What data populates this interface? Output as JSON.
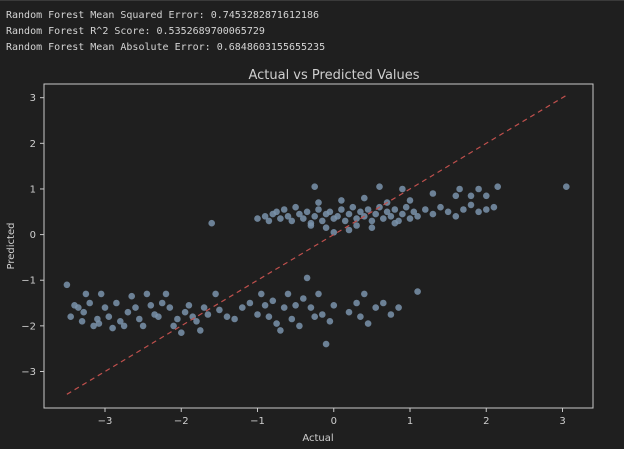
{
  "console": {
    "lines": [
      "Random Forest Mean Squared Error: 0.7453282871612186",
      "Random Forest R^2 Score: 0.5352689700065729",
      "Random Forest Mean Absolute Error: 0.6848603155655235"
    ]
  },
  "colors": {
    "background": "#1f1f1f",
    "axes": "#c8c8c8",
    "points": "#7a93ab",
    "reference_line": "#c0504d"
  },
  "chart_data": {
    "type": "scatter",
    "title": "Actual vs Predicted Values",
    "xlabel": "Actual",
    "ylabel": "Predicted",
    "xlim": [
      -3.8,
      3.4
    ],
    "ylim": [
      -3.8,
      3.3
    ],
    "xticks": [
      "−3",
      "−2",
      "−1",
      "0",
      "1",
      "2",
      "3"
    ],
    "xtick_values": [
      -3,
      -2,
      -1,
      0,
      1,
      2,
      3
    ],
    "yticks": [
      "−3",
      "−2",
      "−1",
      "0",
      "1",
      "2",
      "3"
    ],
    "ytick_values": [
      -3,
      -2,
      -1,
      0,
      1,
      2,
      3
    ],
    "grid": false,
    "reference_line": {
      "x": [
        -3.5,
        3.05
      ],
      "y": [
        -3.5,
        3.05
      ],
      "style": "dashed"
    },
    "points": [
      [
        -3.5,
        -1.1
      ],
      [
        -3.45,
        -1.8
      ],
      [
        -3.4,
        -1.55
      ],
      [
        -3.35,
        -1.6
      ],
      [
        -3.3,
        -1.9
      ],
      [
        -3.28,
        -1.7
      ],
      [
        -3.25,
        -1.3
      ],
      [
        -3.2,
        -1.5
      ],
      [
        -3.15,
        -2.0
      ],
      [
        -3.1,
        -1.85
      ],
      [
        -3.08,
        -1.95
      ],
      [
        -3.05,
        -1.3
      ],
      [
        -3.0,
        -1.6
      ],
      [
        -2.95,
        -1.8
      ],
      [
        -2.9,
        -2.05
      ],
      [
        -2.85,
        -1.5
      ],
      [
        -2.8,
        -1.9
      ],
      [
        -2.75,
        -2.0
      ],
      [
        -2.7,
        -1.7
      ],
      [
        -2.65,
        -1.35
      ],
      [
        -2.6,
        -1.6
      ],
      [
        -2.55,
        -1.85
      ],
      [
        -2.5,
        -2.0
      ],
      [
        -2.45,
        -1.3
      ],
      [
        -2.4,
        -1.55
      ],
      [
        -2.35,
        -1.75
      ],
      [
        -2.3,
        -1.8
      ],
      [
        -2.25,
        -1.5
      ],
      [
        -2.2,
        -1.3
      ],
      [
        -2.15,
        -1.6
      ],
      [
        -2.1,
        -2.0
      ],
      [
        -2.05,
        -1.85
      ],
      [
        -2.0,
        -2.15
      ],
      [
        -1.95,
        -1.7
      ],
      [
        -1.9,
        -1.55
      ],
      [
        -1.85,
        -1.8
      ],
      [
        -1.8,
        -1.9
      ],
      [
        -1.75,
        -2.1
      ],
      [
        -1.7,
        -1.6
      ],
      [
        -1.65,
        -1.75
      ],
      [
        -1.6,
        0.25
      ],
      [
        -1.55,
        -1.3
      ],
      [
        -1.5,
        -1.65
      ],
      [
        -1.4,
        -1.8
      ],
      [
        -1.3,
        -1.85
      ],
      [
        -1.2,
        -1.6
      ],
      [
        -1.1,
        -1.5
      ],
      [
        -1.0,
        -1.75
      ],
      [
        -0.95,
        -1.3
      ],
      [
        -0.9,
        -1.55
      ],
      [
        -0.85,
        -1.8
      ],
      [
        -0.8,
        -1.45
      ],
      [
        -0.75,
        -1.95
      ],
      [
        -0.7,
        -2.1
      ],
      [
        -0.65,
        -1.6
      ],
      [
        -0.6,
        -1.3
      ],
      [
        -0.55,
        -1.85
      ],
      [
        -0.5,
        -1.55
      ],
      [
        -0.45,
        -2.0
      ],
      [
        -0.4,
        -1.4
      ],
      [
        -0.35,
        -0.95
      ],
      [
        -0.3,
        -1.6
      ],
      [
        -0.25,
        -1.8
      ],
      [
        -0.2,
        -1.3
      ],
      [
        -0.15,
        -1.75
      ],
      [
        -0.1,
        -2.4
      ],
      [
        -0.05,
        -1.9
      ],
      [
        0.0,
        -1.55
      ],
      [
        0.2,
        -1.7
      ],
      [
        0.3,
        -1.5
      ],
      [
        0.35,
        -1.8
      ],
      [
        0.4,
        -1.3
      ],
      [
        0.45,
        -1.95
      ],
      [
        0.55,
        -1.6
      ],
      [
        0.65,
        -1.5
      ],
      [
        0.75,
        -1.75
      ],
      [
        0.85,
        -1.6
      ],
      [
        1.1,
        -1.25
      ],
      [
        -1.0,
        0.35
      ],
      [
        -0.9,
        0.4
      ],
      [
        -0.85,
        0.3
      ],
      [
        -0.8,
        0.45
      ],
      [
        -0.75,
        0.5
      ],
      [
        -0.7,
        0.35
      ],
      [
        -0.65,
        0.55
      ],
      [
        -0.6,
        0.4
      ],
      [
        -0.55,
        0.3
      ],
      [
        -0.5,
        0.6
      ],
      [
        -0.45,
        0.45
      ],
      [
        -0.4,
        0.35
      ],
      [
        -0.35,
        0.5
      ],
      [
        -0.3,
        0.2
      ],
      [
        -0.25,
        0.4
      ],
      [
        -0.2,
        0.55
      ],
      [
        -0.15,
        0.3
      ],
      [
        -0.1,
        0.45
      ],
      [
        -0.05,
        0.5
      ],
      [
        0.0,
        0.35
      ],
      [
        0.05,
        0.4
      ],
      [
        0.1,
        0.55
      ],
      [
        0.15,
        0.3
      ],
      [
        0.2,
        0.45
      ],
      [
        0.25,
        0.6
      ],
      [
        0.3,
        0.35
      ],
      [
        0.35,
        0.5
      ],
      [
        0.4,
        0.4
      ],
      [
        0.45,
        0.55
      ],
      [
        0.5,
        0.3
      ],
      [
        0.55,
        0.45
      ],
      [
        0.6,
        0.6
      ],
      [
        0.65,
        0.35
      ],
      [
        0.7,
        0.5
      ],
      [
        0.75,
        0.4
      ],
      [
        0.8,
        0.55
      ],
      [
        0.85,
        0.3
      ],
      [
        0.9,
        0.45
      ],
      [
        0.95,
        0.6
      ],
      [
        1.0,
        0.35
      ],
      [
        1.05,
        0.5
      ],
      [
        1.1,
        0.4
      ],
      [
        1.2,
        0.55
      ],
      [
        1.3,
        0.45
      ],
      [
        1.4,
        0.6
      ],
      [
        1.5,
        0.5
      ],
      [
        1.6,
        0.4
      ],
      [
        1.7,
        0.55
      ],
      [
        1.8,
        0.65
      ],
      [
        1.9,
        0.5
      ],
      [
        2.0,
        0.55
      ],
      [
        2.1,
        0.6
      ],
      [
        -0.2,
        0.7
      ],
      [
        0.1,
        0.75
      ],
      [
        0.4,
        0.8
      ],
      [
        0.7,
        0.7
      ],
      [
        1.0,
        0.75
      ],
      [
        1.3,
        0.9
      ],
      [
        1.6,
        0.85
      ],
      [
        1.8,
        0.85
      ],
      [
        1.9,
        1.0
      ],
      [
        2.0,
        0.85
      ],
      [
        2.15,
        1.05
      ],
      [
        1.65,
        1.0
      ],
      [
        0.6,
        1.05
      ],
      [
        0.9,
        1.0
      ],
      [
        -0.25,
        1.05
      ],
      [
        0.2,
        0.1
      ],
      [
        0.0,
        0.05
      ],
      [
        -0.1,
        0.15
      ],
      [
        0.3,
        0.2
      ],
      [
        0.5,
        0.15
      ],
      [
        0.8,
        0.25
      ],
      [
        -0.3,
        0.25
      ],
      [
        3.05,
        1.05
      ]
    ]
  }
}
